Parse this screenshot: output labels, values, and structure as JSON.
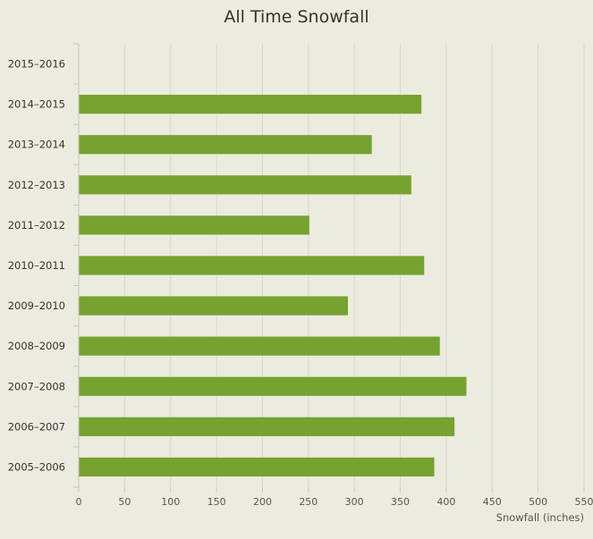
{
  "chart_data": {
    "type": "bar",
    "orientation": "horizontal",
    "title": "All Time Snowfall",
    "xlabel": "Snowfall (inches)",
    "ylabel": "",
    "categories": [
      "2015–2016",
      "2014–2015",
      "2013–2014",
      "2012–2013",
      "2011–2012",
      "2010–2011",
      "2009–2010",
      "2008–2009",
      "2007–2008",
      "2006–2007",
      "2005–2006"
    ],
    "values": [
      0,
      373,
      319,
      362,
      251,
      376,
      293,
      393,
      422,
      409,
      387
    ],
    "xlim": [
      0,
      550
    ],
    "xticks": [
      0,
      50,
      100,
      150,
      200,
      250,
      300,
      350,
      400,
      450,
      500,
      550
    ],
    "grid": true,
    "bar_color": "#76a22f",
    "grid_color": "#d9d8cc",
    "axis_color": "#c8c7bb"
  }
}
